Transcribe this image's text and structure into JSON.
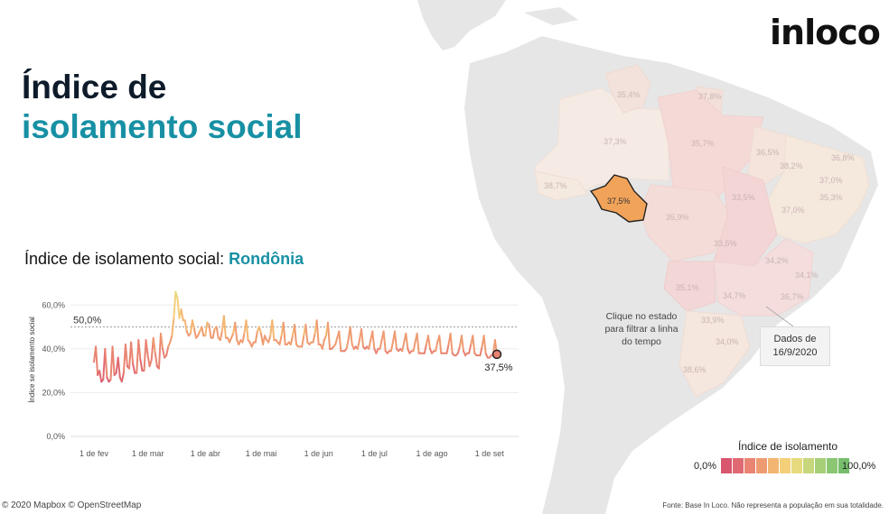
{
  "logo": "inloco",
  "title": {
    "line1": "Índice de",
    "line2": "isolamento social"
  },
  "chart_title": {
    "prefix": "Índice de isolamento social: ",
    "state": "Rondônia"
  },
  "chart_data": {
    "type": "line",
    "ylabel": "Índice se isolamento social",
    "ylim": [
      0,
      70
    ],
    "yticks": [
      "0,0%",
      "20,0%",
      "40,0%",
      "60,0%"
    ],
    "xticks": [
      "1 de fev",
      "1 de mar",
      "1 de abr",
      "1 de mai",
      "1 de jun",
      "1 de jul",
      "1 de ago",
      "1 de set"
    ],
    "reference_line": {
      "value": 50,
      "label": "50,0%"
    },
    "last_point_label": "37,5%",
    "grid": true,
    "series": [
      {
        "start": "2020-02-01",
        "values": [
          34,
          41,
          28,
          30,
          25,
          26,
          40,
          27,
          25,
          26,
          41,
          28,
          29,
          36,
          27,
          25,
          29,
          42,
          32,
          31,
          43,
          33,
          29,
          29,
          44,
          35,
          30,
          30,
          44,
          37,
          32,
          35,
          45,
          38,
          32,
          31,
          47,
          40,
          36,
          37,
          41,
          43,
          46,
          54,
          66,
          63,
          54,
          58,
          53,
          53,
          48,
          46,
          47,
          53,
          49,
          45,
          46,
          48,
          50,
          46,
          46,
          52,
          51,
          45,
          45,
          49,
          50,
          45,
          44,
          48,
          55,
          45,
          45,
          43,
          45,
          47,
          52,
          44,
          42,
          44,
          43,
          47,
          53,
          44,
          43,
          41,
          43,
          43,
          48,
          50,
          47,
          42,
          46,
          44,
          43,
          46,
          53,
          44,
          44,
          43,
          42,
          46,
          52,
          42,
          42,
          43,
          42,
          46,
          51,
          42,
          41,
          41,
          41,
          46,
          51,
          43,
          42,
          43,
          43,
          47,
          53,
          42,
          42,
          40,
          44,
          46,
          52,
          40,
          40,
          41,
          42,
          45,
          48,
          39,
          39,
          39,
          40,
          44,
          50,
          42,
          40,
          41,
          40,
          44,
          49,
          41,
          40,
          41,
          40,
          44,
          48,
          40,
          38,
          40,
          40,
          44,
          48,
          39,
          38,
          39,
          39,
          43,
          48,
          40,
          39,
          40,
          39,
          43,
          47,
          40,
          38,
          39,
          39,
          43,
          47,
          38,
          38,
          38,
          38,
          42,
          46,
          40,
          38,
          39,
          39,
          43,
          46,
          38,
          38,
          38,
          38,
          42,
          47,
          38,
          37,
          37,
          38,
          41,
          46,
          39,
          37,
          38,
          38,
          42,
          46,
          38,
          37,
          37,
          37,
          41,
          46,
          38,
          36,
          36,
          37,
          37.5,
          44,
          37.5
        ]
      }
    ]
  },
  "map": {
    "states": [
      {
        "name": "RR",
        "value": "35,4%"
      },
      {
        "name": "AP",
        "value": "37,8%"
      },
      {
        "name": "AM",
        "value": "37,3%"
      },
      {
        "name": "PA",
        "value": "35,7%"
      },
      {
        "name": "MA",
        "value": "36,5%"
      },
      {
        "name": "CE",
        "value": "38,2%"
      },
      {
        "name": "RN",
        "value": "36,8%"
      },
      {
        "name": "PB",
        "value": "37,0%"
      },
      {
        "name": "PE",
        "value": "35,3%"
      },
      {
        "name": "AC",
        "value": "38,7%"
      },
      {
        "name": "RO",
        "value": "37,5%"
      },
      {
        "name": "MT",
        "value": "35,9%"
      },
      {
        "name": "TO",
        "value": "33,5%"
      },
      {
        "name": "BA",
        "value": "37,0%"
      },
      {
        "name": "GO",
        "value": "33,5%"
      },
      {
        "name": "MG",
        "value": "34,2%"
      },
      {
        "name": "ES",
        "value": "34,1%"
      },
      {
        "name": "MS",
        "value": "35,1%"
      },
      {
        "name": "SP",
        "value": "34,7%"
      },
      {
        "name": "RJ",
        "value": "36,7%"
      },
      {
        "name": "PR",
        "value": "33,9%"
      },
      {
        "name": "SC",
        "value": "34,0%"
      },
      {
        "name": "RS",
        "value": "38,6%"
      }
    ],
    "selected": "RO",
    "hint": "Clique no estado para filtrar a linha do tempo",
    "date_box": {
      "line1": "Dados de",
      "line2": "16/9/2020"
    }
  },
  "legend": {
    "title": "Índice de isolamento",
    "min": "0,0%",
    "max": "100,0%",
    "colors": [
      "#d8566e",
      "#e06a72",
      "#e98472",
      "#ef9b72",
      "#f3b672",
      "#f3cf79",
      "#e6da7e",
      "#c8d67c",
      "#a6cf78",
      "#8bc672",
      "#77be6c"
    ]
  },
  "colors": {
    "accent": "#1790a4",
    "selected_state": "#f2a35a"
  },
  "attribution": "© 2020 Mapbox © OpenStreetMap",
  "source_note": "Fonte: Base In Loco. Não representa a população em sua totalidade."
}
